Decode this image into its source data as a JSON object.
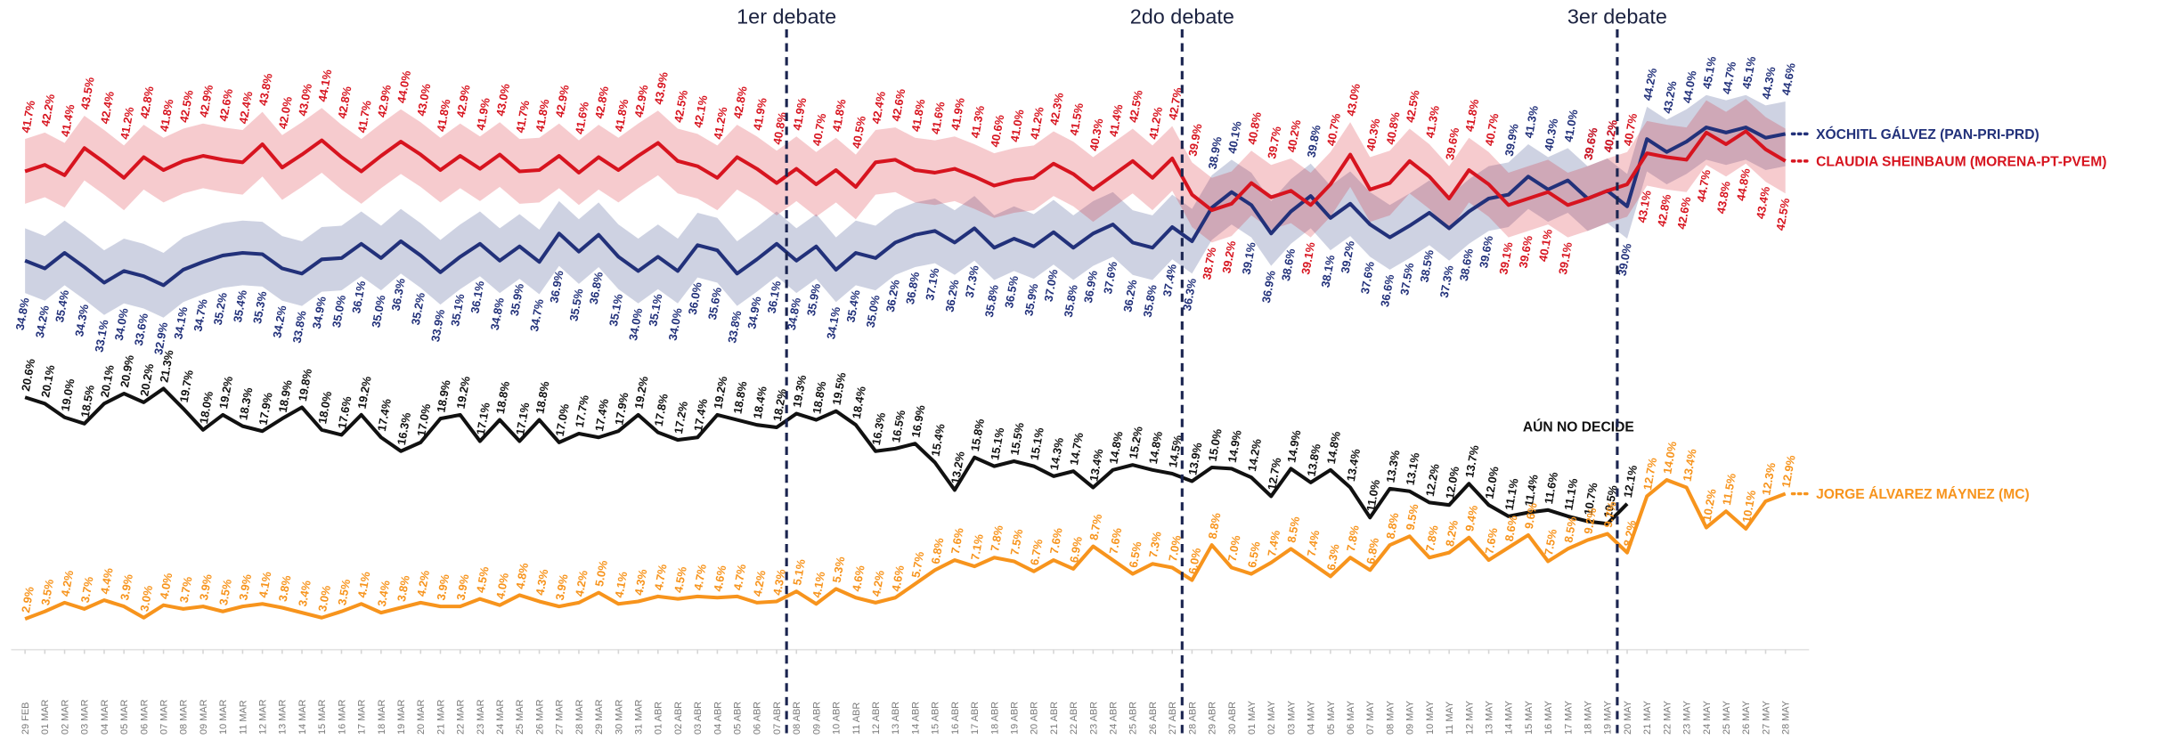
{
  "chart_data": {
    "type": "line",
    "categories": [
      "29 FEB",
      "01 MAR",
      "02 MAR",
      "03 MAR",
      "04 MAR",
      "05 MAR",
      "06 MAR",
      "07 MAR",
      "08 MAR",
      "09 MAR",
      "10 MAR",
      "11 MAR",
      "12 MAR",
      "13 MAR",
      "14 MAR",
      "15 MAR",
      "16 MAR",
      "17 MAR",
      "18 MAR",
      "19 MAR",
      "20 MAR",
      "21 MAR",
      "22 MAR",
      "23 MAR",
      "24 MAR",
      "25 MAR",
      "26 MAR",
      "27 MAR",
      "28 MAR",
      "29 MAR",
      "30 MAR",
      "31 MAR",
      "01 ABR",
      "02 ABR",
      "03 ABR",
      "04 ABR",
      "05 ABR",
      "06 ABR",
      "07 ABR",
      "08 ABR",
      "09 ABR",
      "10 ABR",
      "11 ABR",
      "12 ABR",
      "13 ABR",
      "14 ABR",
      "15 ABR",
      "16 ABR",
      "17 ABR",
      "18 ABR",
      "19 ABR",
      "20 ABR",
      "21 ABR",
      "22 ABR",
      "23 ABR",
      "24 ABR",
      "25 ABR",
      "26 ABR",
      "27 ABR",
      "28 ABR",
      "29 ABR",
      "30 ABR",
      "01 MAY",
      "02 MAY",
      "03 MAY",
      "04 MAY",
      "05 MAY",
      "06 MAY",
      "07 MAY",
      "08 MAY",
      "09 MAY",
      "10 MAY",
      "11 MAY",
      "12 MAY",
      "13 MAY",
      "14 MAY",
      "15 MAY",
      "16 MAY",
      "17 MAY",
      "18 MAY",
      "19 MAY",
      "20 MAY",
      "21 MAY",
      "22 MAY",
      "23 MAY",
      "24 MAY",
      "25 MAY",
      "26 MAY",
      "27 MAY",
      "28 MAY"
    ],
    "ylim": [
      30,
      50
    ],
    "y2lim": [
      0,
      25
    ],
    "annotations": [
      {
        "text": "1er debate",
        "x": "08 ABR"
      },
      {
        "text": "2do debate",
        "x": "28 ABR"
      },
      {
        "text": "3er debate",
        "x": "20 MAY"
      }
    ],
    "series": [
      {
        "name": "XÓCHITL GÁLVEZ (PAN-PRI-PRD)",
        "color": "#22317a",
        "band": 2.5,
        "values": [
          34.8,
          34.2,
          35.4,
          34.3,
          33.1,
          34.0,
          33.6,
          32.9,
          34.1,
          34.7,
          35.2,
          35.4,
          35.3,
          34.2,
          33.8,
          34.9,
          35.0,
          36.1,
          35.0,
          36.3,
          35.2,
          33.9,
          35.1,
          36.1,
          34.8,
          35.9,
          34.7,
          36.9,
          35.5,
          36.8,
          35.1,
          34.0,
          35.1,
          34.0,
          36.0,
          35.6,
          33.8,
          34.9,
          36.1,
          34.8,
          35.9,
          34.1,
          35.4,
          35.0,
          36.2,
          36.8,
          37.1,
          36.2,
          37.3,
          35.8,
          36.5,
          35.9,
          37.0,
          35.8,
          36.9,
          37.6,
          36.2,
          35.8,
          37.4,
          36.3,
          38.9,
          40.1,
          39.1,
          36.9,
          38.6,
          39.8,
          38.1,
          39.2,
          37.6,
          36.6,
          37.5,
          38.5,
          37.3,
          38.6,
          39.6,
          39.9,
          41.3,
          40.3,
          41.0,
          39.6,
          40.2,
          39.0,
          44.2,
          43.2,
          44.0,
          45.1,
          44.7,
          45.1,
          44.3,
          44.6
        ],
        "value_labels": [
          "34.8%",
          "34.2%",
          "35.4%",
          "34.3%",
          "33.1%",
          "34.0%",
          "33.6%",
          "32.9%",
          "34.1%",
          "34.7%",
          "35.2%",
          "35.4%",
          "35.3%",
          "34.2%",
          "33.8%",
          "34.9%",
          "35.0%",
          "36.1%",
          "35.0%",
          "36.3%",
          "35.2%",
          "33.9%",
          "35.1%",
          "36.1%",
          "34.8%",
          "35.9%",
          "34.7%",
          "36.9%",
          "35.5%",
          "36.8%",
          "35.1%",
          "34.0%",
          "35.1%",
          "34.0%",
          "36.0%",
          "35.6%",
          "33.8%",
          "34.9%",
          "36.1%",
          "34.8%",
          "35.9%",
          "34.1%",
          "35.4%",
          "35.0%",
          "36.2%",
          "36.8%",
          "37.1%",
          "36.2%",
          "37.3%",
          "35.8%",
          "36.5%",
          "35.9%",
          "37.0%",
          "35.8%",
          "36.9%",
          "37.6%",
          "36.2%",
          "35.8%",
          "37.4%",
          "36.3%",
          "38.9%",
          "40.1%",
          "39.1%",
          "36.9%",
          "38.6%",
          "39.8%",
          "38.1%",
          "39.2%",
          "37.6%",
          "36.6%",
          "37.5%",
          "38.5%",
          "37.3%",
          "38.6%",
          "39.6%",
          "39.9%",
          "41.3%",
          "40.3%",
          "41.0%",
          "39.6%",
          "40.2%",
          "39.0%",
          "44.2%",
          "43.2%",
          "44.0%",
          "45.1%",
          "44.7%",
          "45.1%",
          "44.3%",
          "44.6%"
        ]
      },
      {
        "name": "CLAUDIA SHEINBAUM (MORENA-PT-PVEM)",
        "color": "#d7141f",
        "band": 2.5,
        "values": [
          41.7,
          42.2,
          41.4,
          43.5,
          42.4,
          41.2,
          42.8,
          41.8,
          42.5,
          42.9,
          42.6,
          42.4,
          43.8,
          42.0,
          43.0,
          44.1,
          42.8,
          41.7,
          42.9,
          44.0,
          43.0,
          41.8,
          42.9,
          41.9,
          43.0,
          41.7,
          41.8,
          42.9,
          41.6,
          42.8,
          41.8,
          42.9,
          43.9,
          42.5,
          42.1,
          41.2,
          42.8,
          41.9,
          40.8,
          41.9,
          40.7,
          41.8,
          40.5,
          42.4,
          42.6,
          41.8,
          41.6,
          41.9,
          41.3,
          40.6,
          41.0,
          41.2,
          42.3,
          41.5,
          40.3,
          41.4,
          42.5,
          41.2,
          42.7,
          39.9,
          38.7,
          39.2,
          40.8,
          39.7,
          40.2,
          39.1,
          40.7,
          43.0,
          40.3,
          40.8,
          42.5,
          41.3,
          39.6,
          41.8,
          40.7,
          39.1,
          39.6,
          40.1,
          39.1,
          39.6,
          40.2,
          40.7,
          43.1,
          42.8,
          42.6,
          44.7,
          43.8,
          44.8,
          43.4,
          42.5
        ],
        "value_labels": [
          "41.7%",
          "42.2%",
          "41.4%",
          "43.5%",
          "42.4%",
          "41.2%",
          "42.8%",
          "41.8%",
          "42.5%",
          "42.9%",
          "42.6%",
          "42.4%",
          "43.8%",
          "42.0%",
          "43.0%",
          "44.1%",
          "42.8%",
          "41.7%",
          "42.9%",
          "44.0%",
          "43.0%",
          "41.8%",
          "42.9%",
          "41.9%",
          "43.0%",
          "41.7%",
          "41.8%",
          "42.9%",
          "41.6%",
          "42.8%",
          "41.8%",
          "42.9%",
          "43.9%",
          "42.5%",
          "42.1%",
          "41.2%",
          "42.8%",
          "41.9%",
          "40.8%",
          "41.9%",
          "40.7%",
          "41.8%",
          "40.5%",
          "42.4%",
          "42.6%",
          "41.8%",
          "41.6%",
          "41.9%",
          "41.3%",
          "40.6%",
          "41.0%",
          "41.2%",
          "42.3%",
          "41.5%",
          "40.3%",
          "41.4%",
          "42.5%",
          "41.2%",
          "42.7%",
          "39.9%",
          "38.7%",
          "39.2%",
          "40.8%",
          "39.7%",
          "40.2%",
          "39.1%",
          "40.7%",
          "43.0%",
          "40.3%",
          "40.8%",
          "42.5%",
          "41.3%",
          "39.6%",
          "41.8%",
          "40.7%",
          "39.1%",
          "39.6%",
          "40.1%",
          "39.1%",
          "39.6%",
          "40.2%",
          "40.7%",
          "43.1%",
          "42.8%",
          "42.6%",
          "44.7%",
          "43.8%",
          "44.8%",
          "43.4%",
          "42.5%"
        ]
      },
      {
        "name": "AÚN NO DECIDE",
        "color": "#111111",
        "axis": "y2",
        "values": [
          20.6,
          20.1,
          19.0,
          18.5,
          20.1,
          20.9,
          20.2,
          21.3,
          19.7,
          18.0,
          19.2,
          18.3,
          17.9,
          18.9,
          19.8,
          18.0,
          17.6,
          19.2,
          17.4,
          16.3,
          17.0,
          18.9,
          19.2,
          17.1,
          18.8,
          17.1,
          18.8,
          17.0,
          17.7,
          17.4,
          17.9,
          19.2,
          17.8,
          17.2,
          17.4,
          19.2,
          18.8,
          18.4,
          18.2,
          19.3,
          18.8,
          19.5,
          18.4,
          16.3,
          16.5,
          16.9,
          15.4,
          13.2,
          15.8,
          15.1,
          15.5,
          15.1,
          14.3,
          14.7,
          13.4,
          14.8,
          15.2,
          14.8,
          14.5,
          13.9,
          15.0,
          14.9,
          14.2,
          12.7,
          14.9,
          13.8,
          14.8,
          13.4,
          11.0,
          13.3,
          13.1,
          12.2,
          12.0,
          13.7,
          12.0,
          11.1,
          11.4,
          11.6,
          11.1,
          10.7,
          10.5,
          12.1,
          null,
          null,
          null,
          null,
          null,
          null,
          null,
          null
        ],
        "value_labels": [
          "20.6%",
          "20.1%",
          "19.0%",
          "18.5%",
          "20.1%",
          "20.9%",
          "20.2%",
          "21.3%",
          "19.7%",
          "18.0%",
          "19.2%",
          "18.3%",
          "17.9%",
          "18.9%",
          "19.8%",
          "18.0%",
          "17.6%",
          "19.2%",
          "17.4%",
          "16.3%",
          "17.0%",
          "18.9%",
          "19.2%",
          "17.1%",
          "18.8%",
          "17.1%",
          "18.8%",
          "17.0%",
          "17.7%",
          "17.4%",
          "17.9%",
          "19.2%",
          "17.8%",
          "17.2%",
          "17.4%",
          "19.2%",
          "18.8%",
          "18.4%",
          "18.2%",
          "19.3%",
          "18.8%",
          "19.5%",
          "18.4%",
          "16.3%",
          "16.5%",
          "16.9%",
          "15.4%",
          "13.2%",
          "15.8%",
          "15.1%",
          "15.5%",
          "15.1%",
          "14.3%",
          "14.7%",
          "13.4%",
          "14.8%",
          "15.2%",
          "14.8%",
          "14.5%",
          "13.9%",
          "15.0%",
          "14.9%",
          "14.2%",
          "12.7%",
          "14.9%",
          "13.8%",
          "14.8%",
          "13.4%",
          "11.0%",
          "13.3%",
          "13.1%",
          "12.2%",
          "12.0%",
          "13.7%",
          "12.0%",
          "11.1%",
          "11.4%",
          "11.6%",
          "11.1%",
          "10.7%",
          "10.5%",
          "12.1%",
          null,
          null,
          null,
          null,
          null,
          null,
          null,
          null
        ]
      },
      {
        "name": "JORGE ÁLVAREZ MÁYNEZ (MC)",
        "color": "#f7941d",
        "axis": "y2",
        "values": [
          2.9,
          3.5,
          4.2,
          3.7,
          4.4,
          3.9,
          3.0,
          4.0,
          3.7,
          3.9,
          3.5,
          3.9,
          4.1,
          3.8,
          3.4,
          3.0,
          3.5,
          4.1,
          3.4,
          3.8,
          4.2,
          3.9,
          3.9,
          4.5,
          4.0,
          4.8,
          4.3,
          3.9,
          4.2,
          5.0,
          4.1,
          4.3,
          4.7,
          4.5,
          4.7,
          4.6,
          4.7,
          4.2,
          4.3,
          5.1,
          4.1,
          5.3,
          4.6,
          4.2,
          4.6,
          5.7,
          6.8,
          7.6,
          7.1,
          7.8,
          7.5,
          6.7,
          7.6,
          6.9,
          8.7,
          7.6,
          6.5,
          7.3,
          7.0,
          6.0,
          8.8,
          7.0,
          6.5,
          7.4,
          8.5,
          7.4,
          6.3,
          7.8,
          6.8,
          8.8,
          9.5,
          7.8,
          8.2,
          9.4,
          7.6,
          8.6,
          9.6,
          7.5,
          8.5,
          9.2,
          9.7,
          8.2,
          12.7,
          14.0,
          13.4,
          10.2,
          11.5,
          10.1,
          12.3,
          12.9
        ],
        "value_labels": [
          "2.9%",
          "3.5%",
          "4.2%",
          "3.7%",
          "4.4%",
          "3.9%",
          "3.0%",
          "4.0%",
          "3.7%",
          "3.9%",
          "3.5%",
          "3.9%",
          "4.1%",
          "3.8%",
          "3.4%",
          "3.0%",
          "3.5%",
          "4.1%",
          "3.4%",
          "3.8%",
          "4.2%",
          "3.9%",
          "3.9%",
          "4.5%",
          "4.0%",
          "4.8%",
          "4.3%",
          "3.9%",
          "4.2%",
          "5.0%",
          "4.1%",
          "4.3%",
          "4.7%",
          "4.5%",
          "4.7%",
          "4.6%",
          "4.7%",
          "4.2%",
          "4.3%",
          "5.1%",
          "4.1%",
          "5.3%",
          "4.6%",
          "4.2%",
          "4.6%",
          "5.7%",
          "6.8%",
          "7.6%",
          "7.1%",
          "7.8%",
          "7.5%",
          "6.7%",
          "7.6%",
          "6.9%",
          "8.7%",
          "7.6%",
          "6.5%",
          "7.3%",
          "7.0%",
          "6.0%",
          "8.8%",
          "7.0%",
          "6.5%",
          "7.4%",
          "8.5%",
          "7.4%",
          "6.3%",
          "7.8%",
          "6.8%",
          "8.8%",
          "9.5%",
          "7.8%",
          "8.2%",
          "9.4%",
          "7.6%",
          "8.6%",
          "9.6%",
          "7.5%",
          "8.5%",
          "9.2%",
          "9.7%",
          "8.2%",
          "12.7%",
          "14.0%",
          "13.4%",
          "10.2%",
          "11.5%",
          "10.1%",
          "12.3%",
          "12.9%"
        ]
      }
    ]
  }
}
